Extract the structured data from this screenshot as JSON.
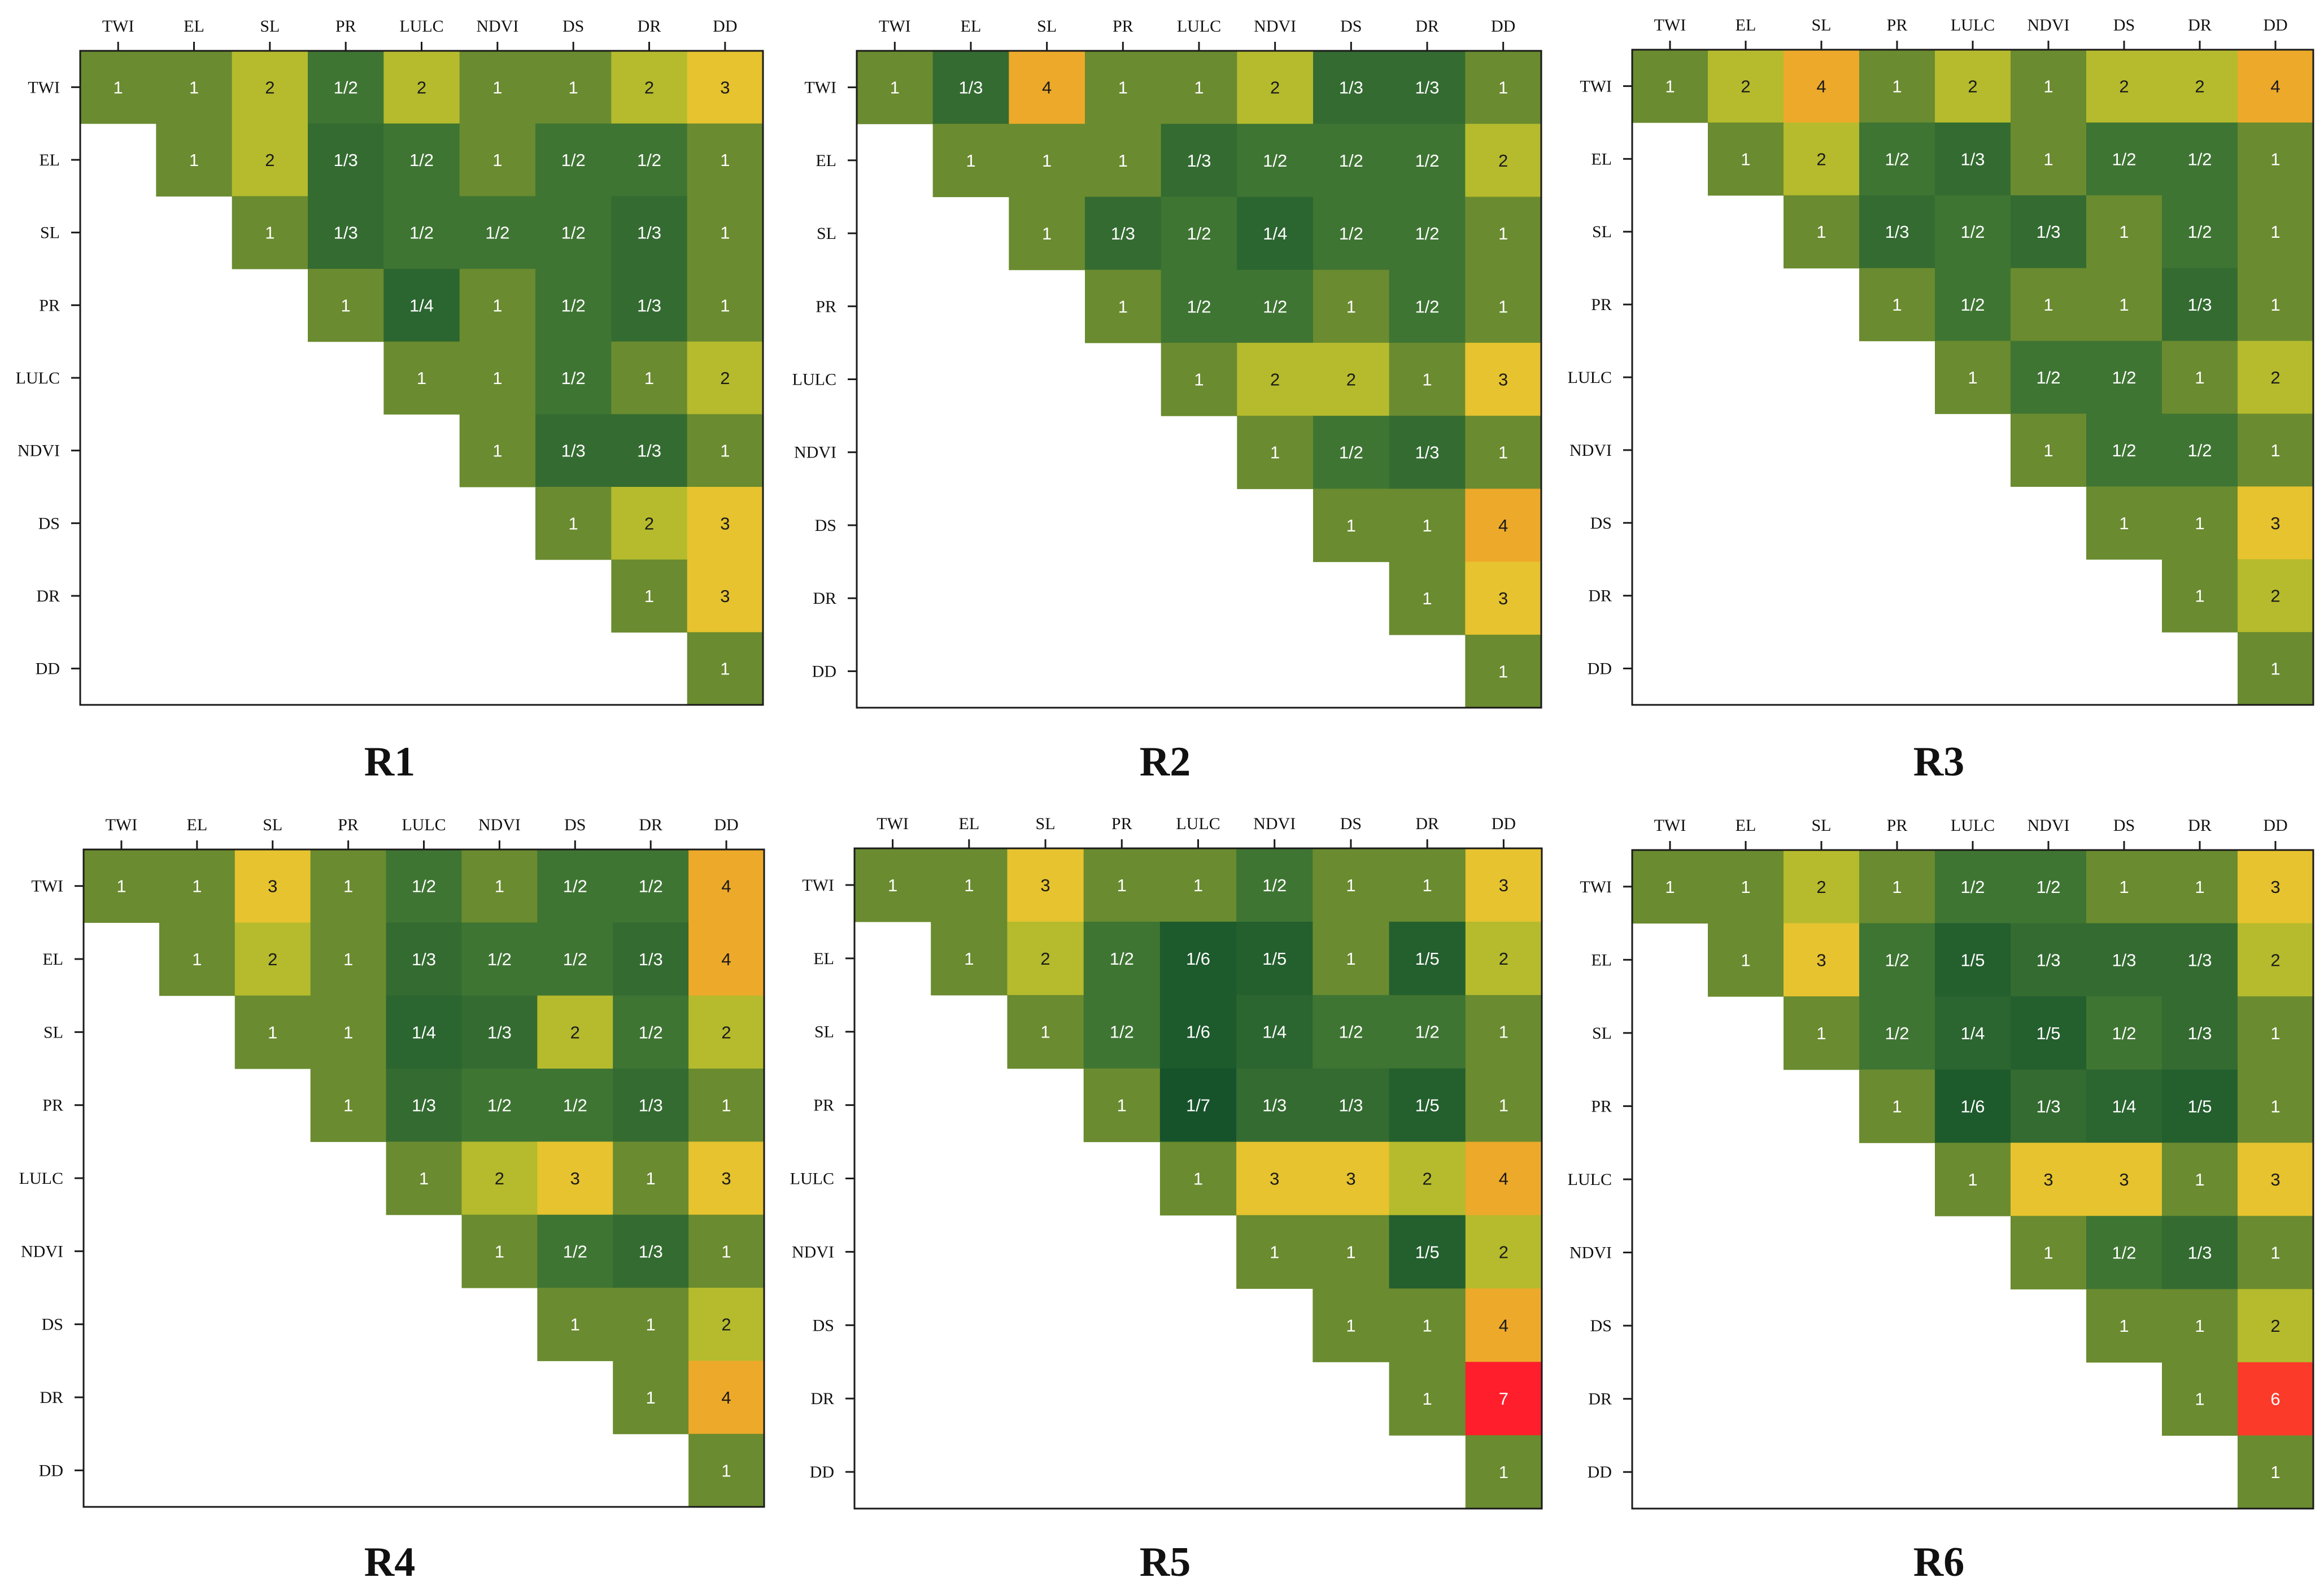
{
  "colors": {
    "1/7": "#16532b",
    "1/6": "#1d5a2c",
    "1/5": "#245f2e",
    "1/4": "#2b6530",
    "1/3": "#346b31",
    "1/2": "#3f7533",
    "1": "#6a8b2f",
    "2": "#b5bb2d",
    "3": "#e6c32f",
    "4": "#eda92a",
    "6": "#fb3a2a",
    "7": "#ff1f2c"
  },
  "chart_data": [
    {
      "type": "heatmap",
      "title": "R1",
      "labels": [
        "TWI",
        "EL",
        "SL",
        "PR",
        "LULC",
        "NDVI",
        "DS",
        "DR",
        "DD"
      ],
      "rows": [
        [
          "1",
          "1",
          "2",
          "1/2",
          "2",
          "1",
          "1",
          "2",
          "3"
        ],
        [
          "1",
          "2",
          "1/3",
          "1/2",
          "1",
          "1/2",
          "1/2",
          "1"
        ],
        [
          "1",
          "1/3",
          "1/2",
          "1/2",
          "1/2",
          "1/3",
          "1"
        ],
        [
          "1",
          "1/4",
          "1",
          "1/2",
          "1/3",
          "1"
        ],
        [
          "1",
          "1",
          "1/2",
          "1",
          "2"
        ],
        [
          "1",
          "1/3",
          "1/3",
          "1"
        ],
        [
          "1",
          "2",
          "3"
        ],
        [
          "1",
          "3"
        ],
        [
          "1"
        ]
      ]
    },
    {
      "type": "heatmap",
      "title": "R2",
      "labels": [
        "TWI",
        "EL",
        "SL",
        "PR",
        "LULC",
        "NDVI",
        "DS",
        "DR",
        "DD"
      ],
      "rows": [
        [
          "1",
          "1/3",
          "4",
          "1",
          "1",
          "2",
          "1/3",
          "1/3",
          "1"
        ],
        [
          "1",
          "1",
          "1",
          "1/3",
          "1/2",
          "1/2",
          "1/2",
          "2"
        ],
        [
          "1",
          "1/3",
          "1/2",
          "1/4",
          "1/2",
          "1/2",
          "1"
        ],
        [
          "1",
          "1/2",
          "1/2",
          "1",
          "1/2",
          "1"
        ],
        [
          "1",
          "2",
          "2",
          "1",
          "3"
        ],
        [
          "1",
          "1/2",
          "1/3",
          "1"
        ],
        [
          "1",
          "1",
          "4"
        ],
        [
          "1",
          "3"
        ],
        [
          "1"
        ]
      ]
    },
    {
      "type": "heatmap",
      "title": "R3",
      "labels": [
        "TWI",
        "EL",
        "SL",
        "PR",
        "LULC",
        "NDVI",
        "DS",
        "DR",
        "DD"
      ],
      "rows": [
        [
          "1",
          "2",
          "4",
          "1",
          "2",
          "1",
          "2",
          "2",
          "4"
        ],
        [
          "1",
          "2",
          "1/2",
          "1/3",
          "1",
          "1/2",
          "1/2",
          "1"
        ],
        [
          "1",
          "1/3",
          "1/2",
          "1/3",
          "1",
          "1/2",
          "1"
        ],
        [
          "1",
          "1/2",
          "1",
          "1",
          "1/3",
          "1"
        ],
        [
          "1",
          "1/2",
          "1/2",
          "1",
          "2"
        ],
        [
          "1",
          "1/2",
          "1/2",
          "1"
        ],
        [
          "1",
          "1",
          "3"
        ],
        [
          "1",
          "2"
        ],
        [
          "1"
        ]
      ]
    },
    {
      "type": "heatmap",
      "title": "R4",
      "labels": [
        "TWI",
        "EL",
        "SL",
        "PR",
        "LULC",
        "NDVI",
        "DS",
        "DR",
        "DD"
      ],
      "rows": [
        [
          "1",
          "1",
          "3",
          "1",
          "1/2",
          "1",
          "1/2",
          "1/2",
          "4"
        ],
        [
          "1",
          "2",
          "1",
          "1/3",
          "1/2",
          "1/2",
          "1/3",
          "4"
        ],
        [
          "1",
          "1",
          "1/4",
          "1/3",
          "2",
          "1/2",
          "2"
        ],
        [
          "1",
          "1/3",
          "1/2",
          "1/2",
          "1/3",
          "1"
        ],
        [
          "1",
          "2",
          "3",
          "1",
          "3"
        ],
        [
          "1",
          "1/2",
          "1/3",
          "1"
        ],
        [
          "1",
          "1",
          "2"
        ],
        [
          "1",
          "4"
        ],
        [
          "1"
        ]
      ]
    },
    {
      "type": "heatmap",
      "title": "R5",
      "labels": [
        "TWI",
        "EL",
        "SL",
        "PR",
        "LULC",
        "NDVI",
        "DS",
        "DR",
        "DD"
      ],
      "rows": [
        [
          "1",
          "1",
          "3",
          "1",
          "1",
          "1/2",
          "1",
          "1",
          "3"
        ],
        [
          "1",
          "2",
          "1/2",
          "1/6",
          "1/5",
          "1",
          "1/5",
          "2"
        ],
        [
          "1",
          "1/2",
          "1/6",
          "1/4",
          "1/2",
          "1/2",
          "1"
        ],
        [
          "1",
          "1/7",
          "1/3",
          "1/3",
          "1/5",
          "1"
        ],
        [
          "1",
          "3",
          "3",
          "2",
          "4"
        ],
        [
          "1",
          "1",
          "1/5",
          "2"
        ],
        [
          "1",
          "1",
          "4"
        ],
        [
          "1",
          "7"
        ],
        [
          "1"
        ]
      ]
    },
    {
      "type": "heatmap",
      "title": "R6",
      "labels": [
        "TWI",
        "EL",
        "SL",
        "PR",
        "LULC",
        "NDVI",
        "DS",
        "DR",
        "DD"
      ],
      "rows": [
        [
          "1",
          "1",
          "2",
          "1",
          "1/2",
          "1/2",
          "1",
          "1",
          "3"
        ],
        [
          "1",
          "3",
          "1/2",
          "1/5",
          "1/3",
          "1/3",
          "1/3",
          "2"
        ],
        [
          "1",
          "1/2",
          "1/4",
          "1/5",
          "1/2",
          "1/3",
          "1"
        ],
        [
          "1",
          "1/6",
          "1/3",
          "1/4",
          "1/5",
          "1"
        ],
        [
          "1",
          "3",
          "3",
          "1",
          "3"
        ],
        [
          "1",
          "1/2",
          "1/3",
          "1"
        ],
        [
          "1",
          "1",
          "2"
        ],
        [
          "1",
          "6"
        ],
        [
          "1"
        ]
      ]
    }
  ]
}
